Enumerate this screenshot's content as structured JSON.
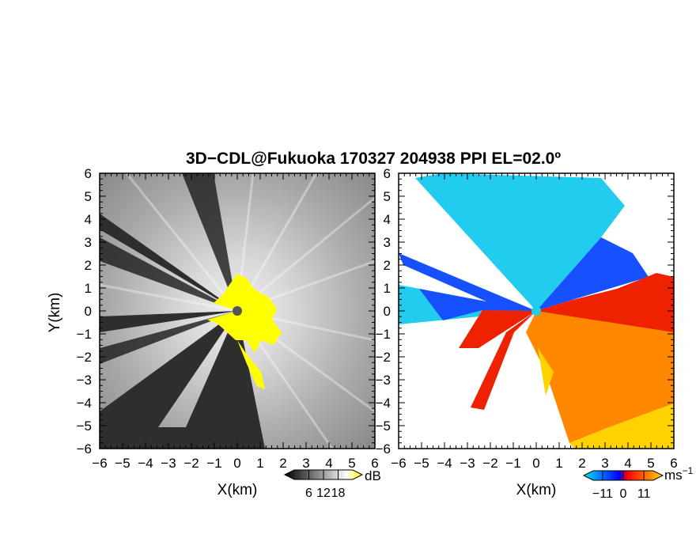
{
  "figure": {
    "title": "3D−CDL@Fukuoka 170327 204938 PPI EL=02.0º"
  },
  "chart_data": [
    {
      "type": "heatmap",
      "panel": "left",
      "quantity_unit": "dB",
      "xlabel": "X(km)",
      "ylabel": "Y(km)",
      "xlim": [
        -6,
        6
      ],
      "ylim": [
        -6,
        6
      ],
      "x_ticks": [
        -6,
        -5,
        -4,
        -3,
        -2,
        -1,
        0,
        1,
        2,
        3,
        4,
        5,
        6
      ],
      "y_ticks": [
        -6,
        -5,
        -4,
        -3,
        -2,
        -1,
        0,
        1,
        2,
        3,
        4,
        5,
        6
      ],
      "x_tick_labels": [
        "−6",
        "−5",
        "−4",
        "−3",
        "−2",
        "−1",
        "0",
        "1",
        "2",
        "3",
        "4",
        "5",
        "6"
      ],
      "y_tick_labels": [
        "−6",
        "−5",
        "−4",
        "−3",
        "−2",
        "−1",
        "0",
        "1",
        "2",
        "3",
        "4",
        "5",
        "6"
      ],
      "colorbar": {
        "ticks": [
          6,
          12,
          18
        ],
        "tick_labels": [
          "6",
          "12",
          "18"
        ],
        "unit": "dB",
        "colors": [
          "#000000",
          "#ffffff",
          "#ffff00"
        ]
      },
      "radar_center": [
        0,
        0
      ],
      "colors": {
        "background": "#2e2e2e",
        "highlight": "#ffff00",
        "center": "#555555"
      }
    },
    {
      "type": "heatmap",
      "panel": "right",
      "quantity_unit": "ms⁻¹",
      "xlabel": "X(km)",
      "xlim": [
        -6,
        6
      ],
      "ylim": [
        -6,
        6
      ],
      "x_ticks": [
        -6,
        -5,
        -4,
        -3,
        -2,
        -1,
        0,
        1,
        2,
        3,
        4,
        5,
        6
      ],
      "y_ticks": [
        -6,
        -5,
        -4,
        -3,
        -2,
        -1,
        0,
        1,
        2,
        3,
        4,
        5,
        6
      ],
      "x_tick_labels": [
        "−6",
        "−5",
        "−4",
        "−3",
        "−2",
        "−1",
        "0",
        "1",
        "2",
        "3",
        "4",
        "5",
        "6"
      ],
      "y_tick_labels": [
        "−6",
        "−5",
        "−4",
        "−3",
        "−2",
        "−1",
        "0",
        "1",
        "2",
        "3",
        "4",
        "5",
        "6"
      ],
      "colorbar": {
        "ticks": [
          -11,
          0,
          11
        ],
        "tick_labels": [
          "−11",
          "0",
          "11"
        ],
        "unit": "ms",
        "unit_exponent": "−1",
        "colors": [
          "#00e5ff",
          "#0000ff",
          "#ff0000",
          "#ffd700"
        ]
      },
      "radar_center": [
        0,
        0
      ],
      "colors": {
        "cyan": "#22ccee",
        "blue": "#1650ff",
        "red": "#ee2200",
        "orange": "#ff8800",
        "yellow": "#ffd200",
        "center": "#20d0e0"
      }
    }
  ]
}
